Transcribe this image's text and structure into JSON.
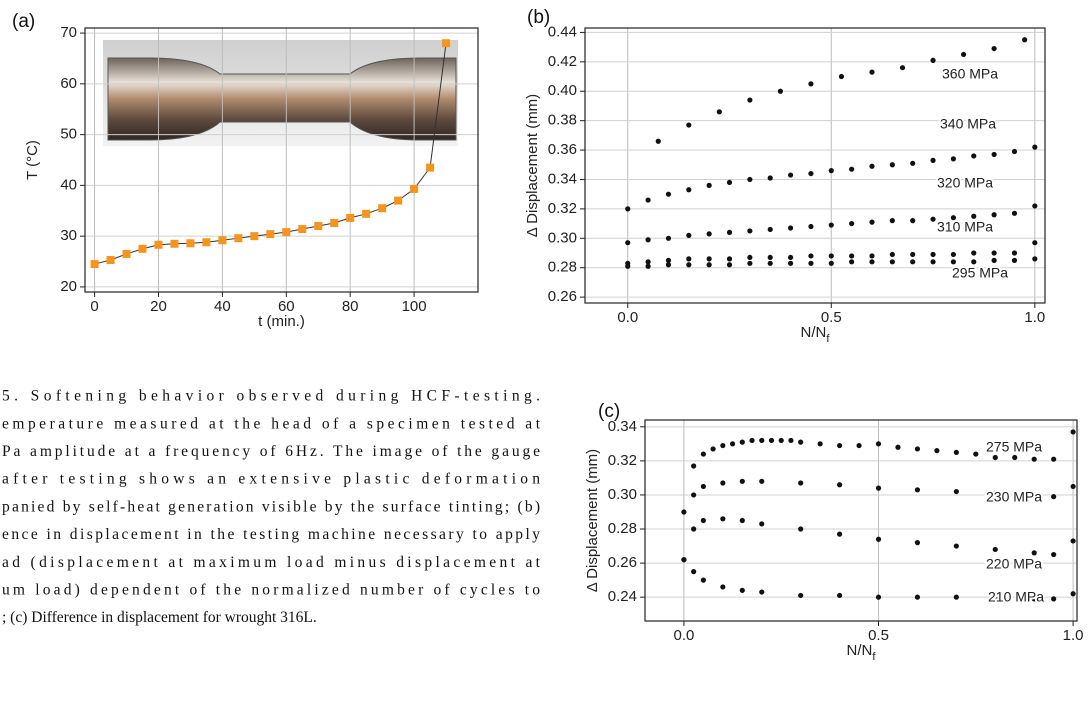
{
  "chart_data": [
    {
      "type": "line",
      "label": "(a)",
      "xlabel": "t (min.)",
      "ylabel": "T (°C)",
      "xlim": [
        -3,
        120
      ],
      "ylim": [
        19,
        71
      ],
      "xticks": [
        0,
        20,
        40,
        60,
        80,
        100
      ],
      "yticks": [
        20,
        30,
        40,
        50,
        60,
        70
      ],
      "grid": true,
      "series": [
        {
          "color": "#f7941d",
          "x": [
            0,
            5,
            10,
            15,
            20,
            25,
            30,
            35,
            40,
            45,
            50,
            55,
            60,
            65,
            70,
            75,
            80,
            85,
            90,
            95,
            100,
            105,
            110
          ],
          "values": [
            24.5,
            25.3,
            26.5,
            27.5,
            28.3,
            28.5,
            28.6,
            28.8,
            29.2,
            29.6,
            30.0,
            30.4,
            30.8,
            31.4,
            32.0,
            32.6,
            33.6,
            34.4,
            35.5,
            37.0,
            39.3,
            43.5,
            68
          ]
        }
      ]
    },
    {
      "type": "scatter",
      "label": "(b)",
      "xlabel": "N/N",
      "xlabel_sub": "f",
      "ylabel": "Δ Displacement (mm)",
      "xlim": [
        -0.105,
        1.025
      ],
      "ylim": [
        0.256,
        0.443
      ],
      "xticks": [
        {
          "value": 0,
          "label": "0.0"
        },
        0.5,
        {
          "value": 1,
          "label": "1.0"
        }
      ],
      "yticks": [
        0.26,
        0.28,
        {
          "value": 0.3,
          "label": "0.30"
        },
        0.32,
        0.34,
        0.36,
        0.38,
        {
          "value": 0.4,
          "label": "0.40"
        },
        0.42,
        0.44
      ],
      "grid": true,
      "series": [
        {
          "name": "360 MPa",
          "color": "#111111",
          "x": [
            0.075,
            0.15,
            0.225,
            0.3,
            0.375,
            0.45,
            0.525,
            0.6,
            0.675,
            0.75,
            0.825,
            0.9,
            0.975
          ],
          "values": [
            0.366,
            0.377,
            0.386,
            0.394,
            0.4,
            0.405,
            0.41,
            0.413,
            0.416,
            0.421,
            0.425,
            0.429,
            0.435
          ]
        },
        {
          "name": "340 MPa",
          "color": "#111111",
          "x": [
            0,
            0.05,
            0.1,
            0.15,
            0.2,
            0.25,
            0.3,
            0.35,
            0.4,
            0.45,
            0.5,
            0.55,
            0.6,
            0.65,
            0.7,
            0.75,
            0.8,
            0.85,
            0.9,
            0.95,
            1
          ],
          "values": [
            0.32,
            0.326,
            0.33,
            0.333,
            0.336,
            0.338,
            0.34,
            0.341,
            0.343,
            0.344,
            0.346,
            0.347,
            0.349,
            0.35,
            0.351,
            0.353,
            0.354,
            0.356,
            0.357,
            0.359,
            0.362
          ]
        },
        {
          "name": "320 MPa",
          "color": "#111111",
          "x": [
            0,
            0.05,
            0.1,
            0.15,
            0.2,
            0.25,
            0.3,
            0.35,
            0.4,
            0.45,
            0.5,
            0.55,
            0.6,
            0.65,
            0.7,
            0.75,
            0.8,
            0.85,
            0.9,
            0.95,
            1
          ],
          "values": [
            0.297,
            0.299,
            0.3,
            0.302,
            0.303,
            0.304,
            0.305,
            0.306,
            0.307,
            0.308,
            0.309,
            0.31,
            0.311,
            0.312,
            0.312,
            0.313,
            0.314,
            0.315,
            0.316,
            0.317,
            0.322
          ]
        },
        {
          "name": "310 MPa",
          "color": "#111111",
          "x": [
            0,
            0.05,
            0.1,
            0.15,
            0.2,
            0.25,
            0.3,
            0.35,
            0.4,
            0.45,
            0.5,
            0.55,
            0.6,
            0.65,
            0.7,
            0.75,
            0.8,
            0.85,
            0.9,
            0.95,
            1
          ],
          "values": [
            0.283,
            0.284,
            0.285,
            0.286,
            0.286,
            0.286,
            0.287,
            0.287,
            0.287,
            0.288,
            0.288,
            0.288,
            0.288,
            0.289,
            0.289,
            0.289,
            0.289,
            0.29,
            0.29,
            0.29,
            0.297
          ]
        },
        {
          "name": "295 MPa",
          "color": "#111111",
          "x": [
            0,
            0.05,
            0.1,
            0.15,
            0.2,
            0.25,
            0.3,
            0.35,
            0.4,
            0.45,
            0.5,
            0.55,
            0.6,
            0.65,
            0.7,
            0.75,
            0.8,
            0.85,
            0.9,
            0.95,
            1
          ],
          "values": [
            0.281,
            0.281,
            0.282,
            0.282,
            0.282,
            0.282,
            0.283,
            0.283,
            0.283,
            0.283,
            0.283,
            0.284,
            0.284,
            0.284,
            0.284,
            0.284,
            0.284,
            0.284,
            0.285,
            0.285,
            0.286
          ]
        }
      ]
    },
    {
      "type": "scatter",
      "label": "(c)",
      "xlabel": "N/N",
      "xlabel_sub": "f",
      "ylabel": "Δ Displacement (mm)",
      "xlim": [
        -0.1,
        1.01
      ],
      "ylim": [
        0.226,
        0.344
      ],
      "xticks": [
        {
          "value": 0,
          "label": "0.0"
        },
        0.5,
        {
          "value": 1,
          "label": "1.0"
        }
      ],
      "yticks": [
        0.24,
        0.26,
        0.28,
        {
          "value": 0.3,
          "label": "0.30"
        },
        0.32,
        0.34
      ],
      "grid": true,
      "series": [
        {
          "name": "275 MPa",
          "color": "#111111",
          "x": [
            0.025,
            0.05,
            0.075,
            0.1,
            0.125,
            0.15,
            0.175,
            0.2,
            0.225,
            0.25,
            0.275,
            0.3,
            0.35,
            0.4,
            0.45,
            0.5,
            0.55,
            0.6,
            0.65,
            0.7,
            0.75,
            0.8,
            0.85,
            0.9,
            0.95,
            1
          ],
          "values": [
            0.317,
            0.324,
            0.327,
            0.329,
            0.33,
            0.331,
            0.332,
            0.332,
            0.332,
            0.332,
            0.332,
            0.331,
            0.33,
            0.329,
            0.329,
            0.33,
            0.328,
            0.327,
            0.326,
            0.325,
            0.324,
            0.322,
            0.322,
            0.321,
            0.321,
            0.337
          ]
        },
        {
          "name": "230 MPa",
          "color": "#111111",
          "x": [
            0,
            0.025,
            0.05,
            0.1,
            0.15,
            0.2,
            0.3,
            0.4,
            0.5,
            0.6,
            0.7,
            0.8,
            0.9,
            0.95,
            1
          ],
          "values": [
            0.29,
            0.3,
            0.305,
            0.307,
            0.308,
            0.308,
            0.307,
            0.306,
            0.304,
            0.303,
            0.302,
            0.301,
            0.3,
            0.299,
            0.305
          ]
        },
        {
          "name": "220 MPa",
          "color": "#111111",
          "x": [
            0,
            0.025,
            0.05,
            0.1,
            0.15,
            0.2,
            0.3,
            0.4,
            0.5,
            0.6,
            0.7,
            0.8,
            0.9,
            0.95,
            1
          ],
          "values": [
            0.262,
            0.28,
            0.285,
            0.286,
            0.285,
            0.283,
            0.28,
            0.277,
            0.274,
            0.272,
            0.27,
            0.268,
            0.266,
            0.265,
            0.273
          ]
        },
        {
          "name": "210 MPa",
          "color": "#111111",
          "x": [
            0,
            0.025,
            0.05,
            0.1,
            0.15,
            0.2,
            0.3,
            0.4,
            0.5,
            0.6,
            0.7,
            0.8,
            0.9,
            0.95,
            1
          ],
          "values": [
            0.262,
            0.255,
            0.25,
            0.246,
            0.244,
            0.243,
            0.241,
            0.241,
            0.24,
            0.24,
            0.24,
            0.24,
            0.239,
            0.239,
            0.242
          ]
        }
      ]
    }
  ],
  "caption": [
    "5.   Softening   behavior   observed   during   HCF-testing.",
    "emperature measured at the head of a specimen tested at",
    "Pa amplitude at a frequency of 6Hz. The image of the gauge",
    "after testing shows an extensive plastic deformation",
    "panied by self-heat generation visible by the surface tinting; (b)",
    "ence in displacement in the testing machine necessary to apply",
    "ad (displacement at maximum load minus displacement at",
    "um load) dependent of the normalized number of cycles to",
    "; (c) Difference in displacement for wrought 316L."
  ]
}
